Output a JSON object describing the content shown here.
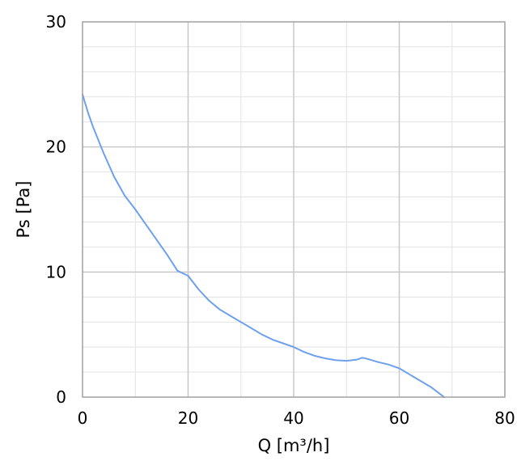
{
  "chart_data": {
    "type": "line",
    "title": "",
    "xlabel": "Q [m³/h]",
    "ylabel": "Ps [Pa]",
    "xlim": [
      0,
      80
    ],
    "ylim": [
      0,
      30
    ],
    "x_ticks": [
      0,
      20,
      40,
      60,
      80
    ],
    "y_ticks": [
      0,
      10,
      20,
      30
    ],
    "x_tick_labels": [
      "0",
      "20",
      "40",
      "60",
      "80"
    ],
    "y_tick_labels": [
      "0",
      "10",
      "20",
      "30"
    ],
    "x_minor_step": 10,
    "y_minor_step": 2,
    "grid": true,
    "legend": "none",
    "colors": {
      "line": "#6ea0ee",
      "major_grid": "#c8c8c8",
      "minor_grid": "#e2e2e2",
      "frame": "#a0a0a0"
    },
    "series": [
      {
        "x": [
          0,
          1,
          2,
          4,
          6,
          8,
          10,
          12,
          14,
          16,
          18,
          20,
          22,
          24,
          26,
          28,
          30,
          32,
          34,
          36,
          38,
          40,
          42,
          44,
          46,
          48,
          50,
          52,
          53,
          54,
          56,
          58,
          60,
          62,
          64,
          66,
          68.5
        ],
        "y": [
          24.2,
          22.8,
          21.6,
          19.5,
          17.6,
          16.1,
          15.0,
          13.8,
          12.6,
          11.4,
          10.1,
          9.7,
          8.6,
          7.7,
          7.0,
          6.5,
          6.0,
          5.5,
          5.0,
          4.6,
          4.3,
          4.0,
          3.6,
          3.3,
          3.1,
          2.95,
          2.9,
          3.0,
          3.15,
          3.05,
          2.8,
          2.6,
          2.3,
          1.8,
          1.3,
          0.8,
          0.0
        ]
      }
    ]
  }
}
